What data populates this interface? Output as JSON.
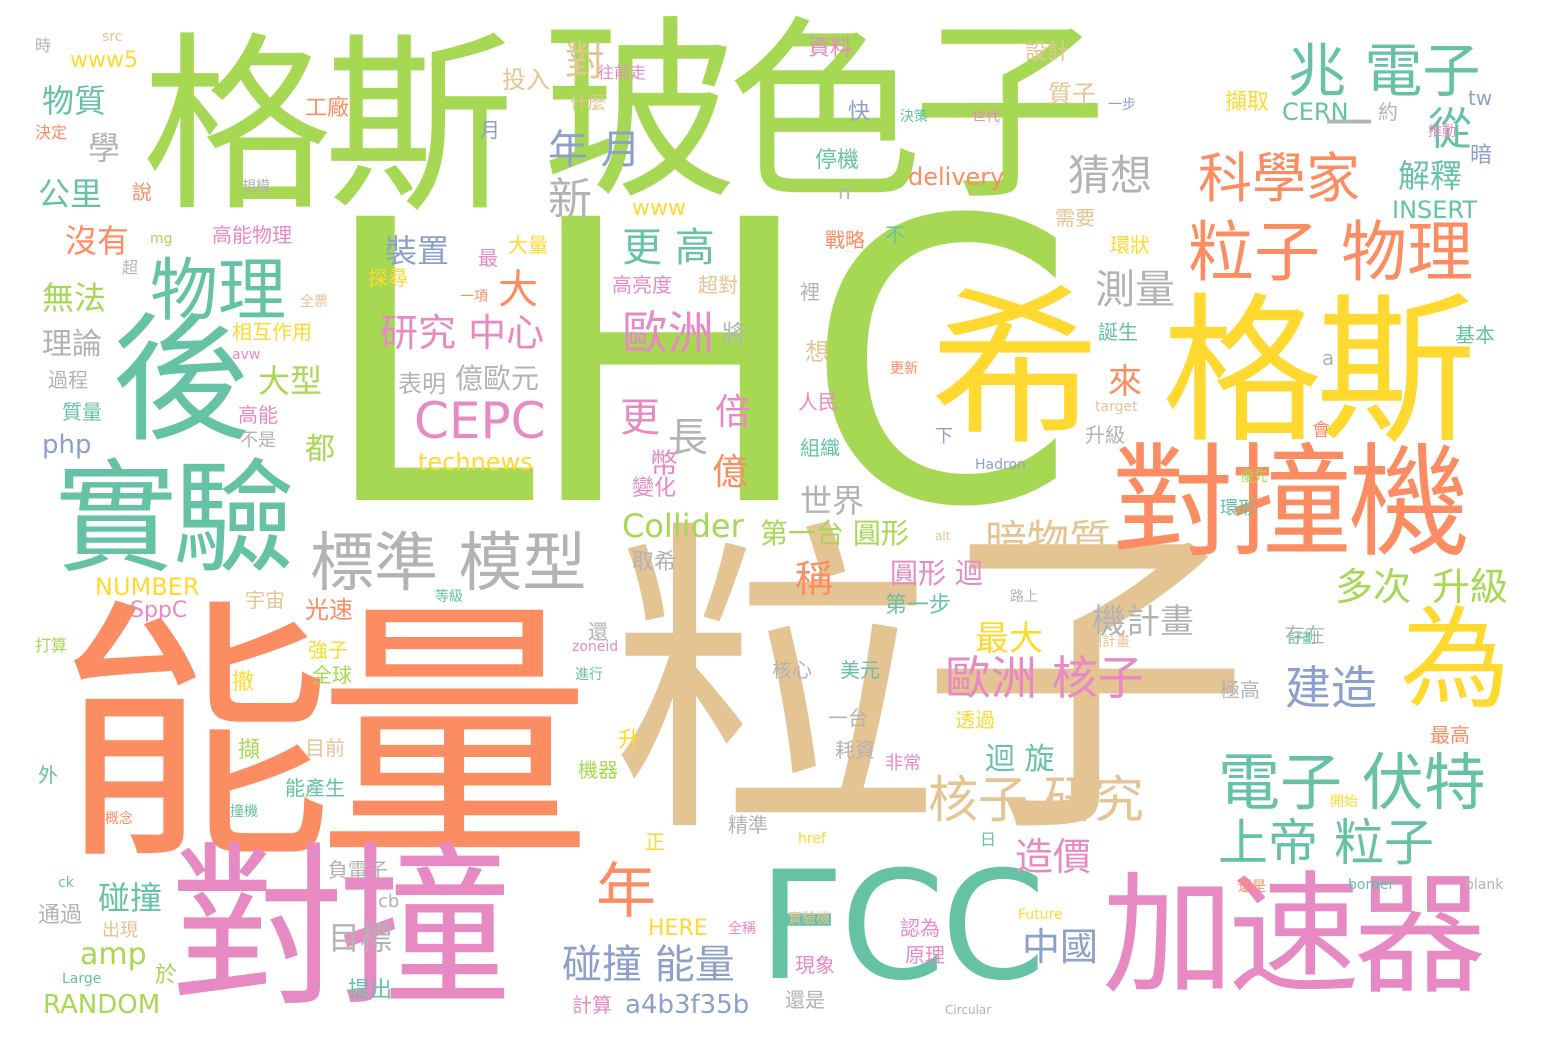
{
  "palette": {
    "green": "#a6d854",
    "tan": "#e5c494",
    "orange": "#fc8d62",
    "teal": "#66c2a5",
    "pink": "#e78ac3",
    "yellow": "#ffd92f",
    "gray": "#b3b3b3",
    "blue": "#8da0cb"
  },
  "words": [
    {
      "text": "LHC",
      "color": "green"
    },
    {
      "text": "粒子",
      "color": "tan"
    },
    {
      "text": "能量",
      "color": "orange"
    },
    {
      "text": "格斯",
      "color": "green"
    },
    {
      "text": "玻色子",
      "color": "green"
    },
    {
      "text": "格斯",
      "color": "yellow"
    },
    {
      "text": "希",
      "color": "yellow"
    },
    {
      "text": "對撞",
      "color": "pink"
    },
    {
      "text": "FCC",
      "color": "teal"
    },
    {
      "text": "加速器",
      "color": "pink"
    },
    {
      "text": "對撞機",
      "color": "orange"
    },
    {
      "text": "實驗",
      "color": "teal"
    },
    {
      "text": "後",
      "color": "teal"
    },
    {
      "text": "為",
      "color": "yellow"
    },
    {
      "text": "粒子 物理",
      "color": "orange"
    },
    {
      "text": "物理",
      "color": "teal"
    },
    {
      "text": "標準 模型",
      "color": "gray"
    },
    {
      "text": "兆 電子",
      "color": "teal"
    },
    {
      "text": "科學家",
      "color": "orange"
    },
    {
      "text": "電子 伏特",
      "color": "teal"
    },
    {
      "text": "上帝 粒子",
      "color": "teal"
    },
    {
      "text": "核子 研究",
      "color": "tan"
    },
    {
      "text": "歐洲 核子",
      "color": "pink"
    },
    {
      "text": "CEPC",
      "color": "pink"
    },
    {
      "text": "研究 中心",
      "color": "pink"
    },
    {
      "text": "建造",
      "color": "blue"
    },
    {
      "text": "多次",
      "color": "green"
    },
    {
      "text": "升級",
      "color": "green"
    },
    {
      "text": "暗物質",
      "color": "tan"
    },
    {
      "text": "測量",
      "color": "gray"
    },
    {
      "text": "猜想",
      "color": "gray"
    },
    {
      "text": "碰撞 能量",
      "color": "blue"
    },
    {
      "text": "年",
      "color": "orange"
    },
    {
      "text": "中國",
      "color": "blue"
    },
    {
      "text": "造價",
      "color": "pink"
    },
    {
      "text": "歐洲",
      "color": "pink"
    },
    {
      "text": "更 高",
      "color": "teal"
    },
    {
      "text": "年 月",
      "color": "blue"
    },
    {
      "text": "新",
      "color": "gray"
    },
    {
      "text": "裝置",
      "color": "blue"
    },
    {
      "text": "Collider",
      "color": "green"
    },
    {
      "text": "世界",
      "color": "gray"
    },
    {
      "text": "億歐元",
      "color": "gray"
    },
    {
      "text": "表明",
      "color": "gray"
    },
    {
      "text": "大型",
      "color": "green"
    },
    {
      "text": "最大",
      "color": "yellow"
    },
    {
      "text": "機計畫",
      "color": "gray"
    },
    {
      "text": "technews",
      "color": "yellow"
    },
    {
      "text": "amp",
      "color": "green"
    },
    {
      "text": "第一台 圓形",
      "color": "green"
    },
    {
      "text": "圓形 迴",
      "color": "pink"
    },
    {
      "text": "解釋",
      "color": "teal"
    },
    {
      "text": "INSERT",
      "color": "teal"
    },
    {
      "text": "CERN",
      "color": "teal"
    },
    {
      "text": "delivery",
      "color": "orange"
    },
    {
      "text": "NUMBER",
      "color": "yellow"
    },
    {
      "text": "RANDOM",
      "color": "green"
    },
    {
      "text": "a4b3f35b",
      "color": "blue"
    },
    {
      "text": "HERE",
      "color": "yellow"
    },
    {
      "text": "SppC",
      "color": "pink"
    },
    {
      "text": "物質",
      "color": "teal"
    },
    {
      "text": "公里",
      "color": "teal"
    },
    {
      "text": "沒有",
      "color": "orange"
    },
    {
      "text": "無法",
      "color": "green"
    },
    {
      "text": "理論",
      "color": "gray"
    },
    {
      "text": "學",
      "color": "gray"
    },
    {
      "text": "目標",
      "color": "gray"
    },
    {
      "text": "碰撞",
      "color": "teal"
    },
    {
      "text": "光速",
      "color": "orange"
    },
    {
      "text": "www5",
      "color": "yellow"
    },
    {
      "text": "www",
      "color": "yellow"
    },
    {
      "text": "php",
      "color": "blue"
    },
    {
      "text": "對",
      "color": "tan"
    },
    {
      "text": "月",
      "color": "blue"
    },
    {
      "text": "從",
      "color": "teal"
    },
    {
      "text": "一",
      "color": "gray"
    },
    {
      "text": "大",
      "color": "orange"
    },
    {
      "text": "更",
      "color": "pink"
    },
    {
      "text": "長",
      "color": "gray"
    },
    {
      "text": "倍",
      "color": "pink"
    },
    {
      "text": "億",
      "color": "orange"
    },
    {
      "text": "幣",
      "color": "pink"
    },
    {
      "text": "稱",
      "color": "orange"
    },
    {
      "text": "來",
      "color": "orange"
    },
    {
      "text": "都",
      "color": "green"
    },
    {
      "text": "迴 旋",
      "color": "teal"
    },
    {
      "text": "投入",
      "color": "tan"
    },
    {
      "text": "質子",
      "color": "tan"
    },
    {
      "text": "擷取",
      "color": "yellow"
    },
    {
      "text": "資料",
      "color": "pink"
    },
    {
      "text": "設計",
      "color": "tan"
    },
    {
      "text": "工廠",
      "color": "orange"
    },
    {
      "text": "什麼",
      "color": "tan"
    },
    {
      "text": "快",
      "color": "blue"
    },
    {
      "text": "停機",
      "color": "teal"
    },
    {
      "text": "高能物理",
      "color": "pink"
    },
    {
      "text": "大量",
      "color": "yellow"
    },
    {
      "text": "戰略",
      "color": "orange"
    },
    {
      "text": "不",
      "color": "teal"
    },
    {
      "text": "需要",
      "color": "tan"
    },
    {
      "text": "環狀",
      "color": "yellow"
    },
    {
      "text": "高亮度",
      "color": "pink"
    },
    {
      "text": "超對",
      "color": "tan"
    },
    {
      "text": "探尋",
      "color": "yellow"
    },
    {
      "text": "相互作用",
      "color": "yellow"
    },
    {
      "text": "誕生",
      "color": "teal"
    },
    {
      "text": "基本",
      "color": "teal"
    },
    {
      "text": "質量",
      "color": "teal"
    },
    {
      "text": "過程",
      "color": "gray"
    },
    {
      "text": "高能",
      "color": "pink"
    },
    {
      "text": "不是",
      "color": "gray"
    },
    {
      "text": "人民",
      "color": "pink"
    },
    {
      "text": "組織",
      "color": "teal"
    },
    {
      "text": "升級",
      "color": "gray"
    },
    {
      "text": "變化",
      "color": "pink"
    },
    {
      "text": "取希",
      "color": "gray"
    },
    {
      "text": "第一步",
      "color": "teal"
    },
    {
      "text": "強子",
      "color": "yellow"
    },
    {
      "text": "全球",
      "color": "green"
    },
    {
      "text": "核心",
      "color": "gray"
    },
    {
      "text": "美元",
      "color": "teal"
    },
    {
      "text": "一台",
      "color": "gray"
    },
    {
      "text": "透過",
      "color": "yellow"
    },
    {
      "text": "耗資",
      "color": "gray"
    },
    {
      "text": "非常",
      "color": "pink"
    },
    {
      "text": "目前",
      "color": "tan"
    },
    {
      "text": "能產生",
      "color": "teal"
    },
    {
      "text": "機器",
      "color": "green"
    },
    {
      "text": "精準",
      "color": "gray"
    },
    {
      "text": "負電子",
      "color": "gray"
    },
    {
      "text": "出現",
      "color": "tan"
    },
    {
      "text": "通過",
      "color": "gray"
    },
    {
      "text": "於",
      "color": "green"
    },
    {
      "text": "提出",
      "color": "teal"
    },
    {
      "text": "計算",
      "color": "pink"
    },
    {
      "text": "還是",
      "color": "gray"
    },
    {
      "text": "現象",
      "color": "pink"
    },
    {
      "text": "認為",
      "color": "pink"
    },
    {
      "text": "原理",
      "color": "pink"
    },
    {
      "text": "存在",
      "color": "gray"
    },
    {
      "text": "極高",
      "color": "gray"
    },
    {
      "text": "最高",
      "color": "orange"
    },
    {
      "text": "宇宙",
      "color": "tan"
    },
    {
      "text": "撤",
      "color": "yellow"
    },
    {
      "text": "擷",
      "color": "green"
    },
    {
      "text": "想",
      "color": "tan"
    },
    {
      "text": "將",
      "color": "gray"
    },
    {
      "text": "說",
      "color": "orange"
    },
    {
      "text": "tw",
      "color": "blue"
    },
    {
      "text": "暗",
      "color": "blue"
    },
    {
      "text": "約",
      "color": "gray"
    },
    {
      "text": "src",
      "color": "tan"
    },
    {
      "text": "時",
      "color": "gray"
    },
    {
      "text": "決定",
      "color": "orange"
    },
    {
      "text": "往前走",
      "color": "pink"
    },
    {
      "text": "決策",
      "color": "teal"
    },
    {
      "text": "世代",
      "color": "pink"
    },
    {
      "text": "推動",
      "color": "pink"
    },
    {
      "text": "一步",
      "color": "blue"
    },
    {
      "text": "規模",
      "color": "gray"
    },
    {
      "text": "一項",
      "color": "orange"
    },
    {
      "text": "全票",
      "color": "tan"
    },
    {
      "text": "更新",
      "color": "orange"
    },
    {
      "text": "target",
      "color": "tan"
    },
    {
      "text": "Hadron",
      "color": "blue"
    },
    {
      "text": "優先",
      "color": "green"
    },
    {
      "text": "環形",
      "color": "teal"
    },
    {
      "text": "alt",
      "color": "tan"
    },
    {
      "text": "路上",
      "color": "gray"
    },
    {
      "text": "期計畫",
      "color": "tan"
    },
    {
      "text": "計劃",
      "color": "teal"
    },
    {
      "text": "開始",
      "color": "yellow"
    },
    {
      "text": "blank",
      "color": "gray"
    },
    {
      "text": "border",
      "color": "teal"
    },
    {
      "text": "還是",
      "color": "orange"
    },
    {
      "text": "Future",
      "color": "yellow"
    },
    {
      "text": "Circular",
      "color": "gray"
    },
    {
      "text": "實驗機",
      "color": "tan"
    },
    {
      "text": "全稱",
      "color": "pink"
    },
    {
      "text": "href",
      "color": "yellow"
    },
    {
      "text": "等級",
      "color": "teal"
    },
    {
      "text": "zoneid",
      "color": "pink"
    },
    {
      "text": "進行",
      "color": "teal"
    },
    {
      "text": "正是",
      "color": "tan"
    },
    {
      "text": "撞機",
      "color": "teal"
    },
    {
      "text": "概念",
      "color": "orange"
    },
    {
      "text": "打算",
      "color": "green"
    },
    {
      "text": "外",
      "color": "teal"
    },
    {
      "text": "Large",
      "color": "teal"
    },
    {
      "text": "ck",
      "color": "teal"
    },
    {
      "text": "cb",
      "color": "gray"
    },
    {
      "text": "mg",
      "color": "green"
    },
    {
      "text": "avw",
      "color": "pink"
    },
    {
      "text": "超",
      "color": "gray"
    },
    {
      "text": "裡",
      "color": "gray"
    },
    {
      "text": "最",
      "color": "pink"
    },
    {
      "text": "下",
      "color": "blue"
    },
    {
      "text": "會",
      "color": "orange"
    },
    {
      "text": "升",
      "color": "yellow"
    },
    {
      "text": "正",
      "color": "yellow"
    },
    {
      "text": "日",
      "color": "teal"
    },
    {
      "text": "n",
      "color": "gray"
    },
    {
      "text": "a",
      "color": "gray"
    },
    {
      "text": "還",
      "color": "gray"
    }
  ]
}
